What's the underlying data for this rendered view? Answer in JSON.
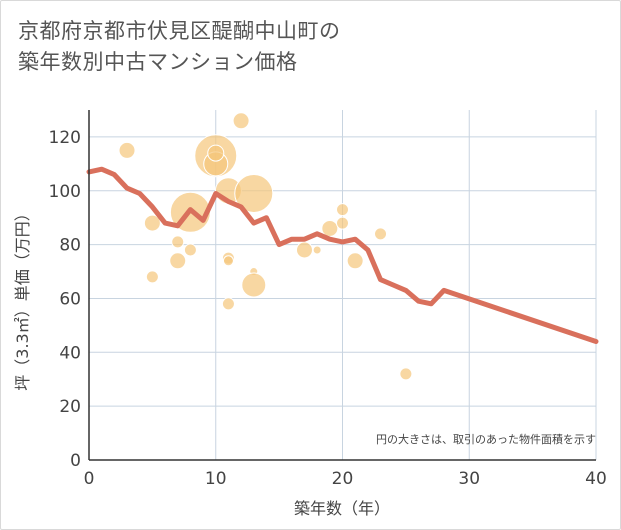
{
  "title_line1": "京都府京都市伏見区醍醐中山町の",
  "title_line2": "築年数別中古マンション価格",
  "chart_data": {
    "type": "scatter+line",
    "xlabel": "築年数（年）",
    "ylabel": "坪（3.3㎡）単価（万円）",
    "xlim": [
      0,
      40
    ],
    "ylim": [
      0,
      130
    ],
    "x_ticks": [
      0,
      10,
      20,
      30,
      40
    ],
    "y_ticks": [
      0,
      20,
      40,
      60,
      80,
      100,
      120
    ],
    "grid": true,
    "note": "円の大きさは、取引のあった物件面積を示す",
    "colors": {
      "bubble": "#f5c67a",
      "line": "#d9705c",
      "grid": "#c8d4e0"
    },
    "line": {
      "x": [
        0,
        1,
        2,
        3,
        4,
        5,
        6,
        7,
        8,
        9,
        10,
        11,
        12,
        13,
        14,
        15,
        16,
        17,
        18,
        19,
        20,
        21,
        22,
        23,
        24,
        25,
        26,
        27,
        28,
        40
      ],
      "y": [
        107,
        108,
        106,
        101,
        99,
        94,
        88,
        87,
        93,
        89,
        99,
        96,
        94,
        88,
        90,
        80,
        82,
        82,
        84,
        82,
        81,
        82,
        78,
        67,
        65,
        63,
        59,
        58,
        63,
        44
      ]
    },
    "bubbles": [
      {
        "x": 3,
        "y": 115,
        "r": 8
      },
      {
        "x": 5,
        "y": 88,
        "r": 8
      },
      {
        "x": 5,
        "y": 68,
        "r": 6
      },
      {
        "x": 7,
        "y": 81,
        "r": 6
      },
      {
        "x": 7,
        "y": 74,
        "r": 8
      },
      {
        "x": 8,
        "y": 92,
        "r": 20
      },
      {
        "x": 8,
        "y": 78,
        "r": 6
      },
      {
        "x": 10,
        "y": 113,
        "r": 21
      },
      {
        "x": 10,
        "y": 110,
        "r": 12
      },
      {
        "x": 10,
        "y": 114,
        "r": 8
      },
      {
        "x": 11,
        "y": 100,
        "r": 13
      },
      {
        "x": 11,
        "y": 75,
        "r": 6
      },
      {
        "x": 11,
        "y": 74,
        "r": 5
      },
      {
        "x": 11,
        "y": 58,
        "r": 6
      },
      {
        "x": 12,
        "y": 126,
        "r": 8
      },
      {
        "x": 13,
        "y": 99,
        "r": 19
      },
      {
        "x": 13,
        "y": 70,
        "r": 4
      },
      {
        "x": 13,
        "y": 65,
        "r": 12
      },
      {
        "x": 17,
        "y": 78,
        "r": 8
      },
      {
        "x": 18,
        "y": 78,
        "r": 4
      },
      {
        "x": 19,
        "y": 86,
        "r": 8
      },
      {
        "x": 20,
        "y": 93,
        "r": 6
      },
      {
        "x": 20,
        "y": 88,
        "r": 6
      },
      {
        "x": 21,
        "y": 74,
        "r": 8
      },
      {
        "x": 23,
        "y": 84,
        "r": 6
      },
      {
        "x": 25,
        "y": 32,
        "r": 6
      }
    ]
  }
}
